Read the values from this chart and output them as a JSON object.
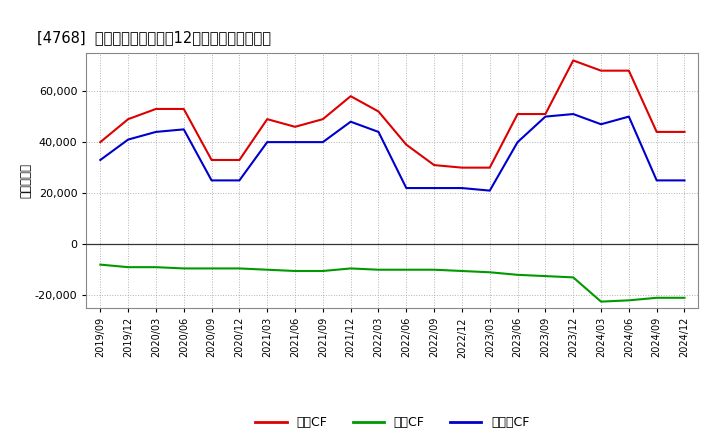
{
  "title": "[4768]  キャッシュフローの12か月移動合計の推移",
  "ylabel": "（百万円）",
  "ylim": [
    -25000,
    75000
  ],
  "yticks": [
    -20000,
    0,
    20000,
    40000,
    60000
  ],
  "background_color": "#ffffff",
  "plot_bg_color": "#ffffff",
  "grid_color": "#aaaaaa",
  "dates": [
    "2019/09",
    "2019/12",
    "2020/03",
    "2020/06",
    "2020/09",
    "2020/12",
    "2021/03",
    "2021/06",
    "2021/09",
    "2021/12",
    "2022/03",
    "2022/06",
    "2022/09",
    "2022/12",
    "2023/03",
    "2023/06",
    "2023/09",
    "2023/12",
    "2024/03",
    "2024/06",
    "2024/09",
    "2024/12"
  ],
  "eigyo_cf": [
    40000,
    49000,
    53000,
    53000,
    33000,
    33000,
    49000,
    46000,
    49000,
    58000,
    52000,
    39000,
    31000,
    30000,
    30000,
    51000,
    51000,
    72000,
    68000,
    68000,
    44000,
    44000
  ],
  "toshi_cf": [
    -8000,
    -9000,
    -9000,
    -9500,
    -9500,
    -9500,
    -10000,
    -10500,
    -10500,
    -9500,
    -10000,
    -10000,
    -10000,
    -10500,
    -11000,
    -12000,
    -12500,
    -13000,
    -22500,
    -22000,
    -21000,
    -21000
  ],
  "free_cf": [
    33000,
    41000,
    44000,
    45000,
    25000,
    25000,
    40000,
    40000,
    40000,
    48000,
    44000,
    22000,
    22000,
    22000,
    21000,
    40000,
    50000,
    51000,
    47000,
    50000,
    25000,
    25000
  ],
  "eigyo_color": "#dd0000",
  "toshi_color": "#009900",
  "free_color": "#0000cc",
  "line_width": 1.5,
  "legend_labels": [
    "営業CF",
    "投資CF",
    "フリーCF"
  ]
}
